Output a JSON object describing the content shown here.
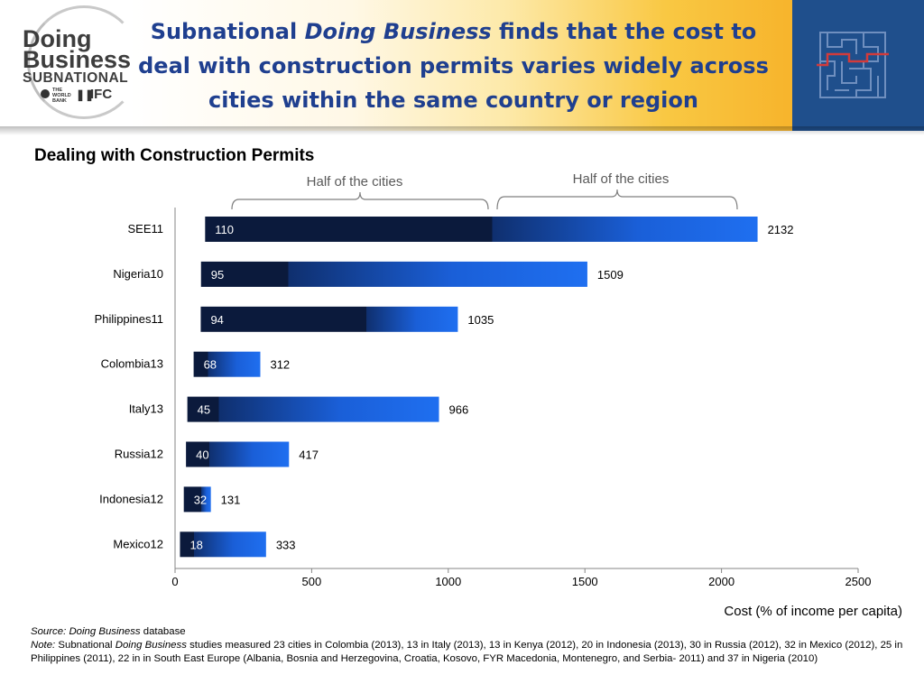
{
  "header": {
    "title_part1": "Subnational",
    "title_italic": "Doing Business",
    "title_part2": "finds that the cost to deal with construction permits varies widely across cities within the same country or region",
    "logo_line1": "Doing",
    "logo_line2": "Business",
    "logo_line3": "SUBNATIONAL",
    "logo_worldbank": "THE WORLD BANK",
    "logo_ifc": "IFC"
  },
  "chart_title": "Dealing with Construction Permits",
  "brace_label_left": "Half of the cities",
  "brace_label_right": "Half of the cities",
  "colors": {
    "title": "#1f3f8f",
    "bar_dark": "#0b1a3c",
    "bar_blue": "#1f6ff0",
    "header_gold": "#f7b52d",
    "header_blue": "#1f4f8c"
  },
  "chart_data": {
    "type": "bar",
    "orientation": "horizontal",
    "title": "Dealing with Construction Permits",
    "xlabel": "Cost (% of income per capita)",
    "ylabel": "",
    "xlim": [
      0,
      2500
    ],
    "xticks": [
      0,
      500,
      1000,
      1500,
      2000,
      2500
    ],
    "categories": [
      "SEE11",
      "Nigeria10",
      "Philippines11",
      "Colombia13",
      "Italy13",
      "Russia12",
      "Indonesia12",
      "Mexico12"
    ],
    "series": [
      {
        "values": [
          110,
          95,
          94,
          68,
          45,
          40,
          32,
          18
        ]
      },
      {
        "values": [
          2132,
          1509,
          1035,
          312,
          966,
          417,
          131,
          333
        ]
      }
    ],
    "median": [
      1160,
      415,
      700,
      120,
      160,
      125,
      95,
      70
    ],
    "annotations": [
      "Half of the cities",
      "Half of the cities"
    ]
  },
  "footer": {
    "source_label": "Source:",
    "source_italic": "Doing Business",
    "source_text": "database",
    "note_label": "Note:",
    "note_prefix": "Subnational",
    "note_italic": "Doing Business",
    "note_text": "studies measured  23 cities in Colombia (2013), 13 in Italy (2013), 13 in Kenya (2012), 20 in Indonesia (2013), 30 in Russia (2012), 32 in Mexico (2012), 25 in Philippines (2011), 22 in in South East Europe (Albania, Bosnia and Herzegovina, Croatia, Kosovo, FYR Macedonia, Montenegro, and Serbia- 2011) and 37 in Nigeria (2010)"
  }
}
